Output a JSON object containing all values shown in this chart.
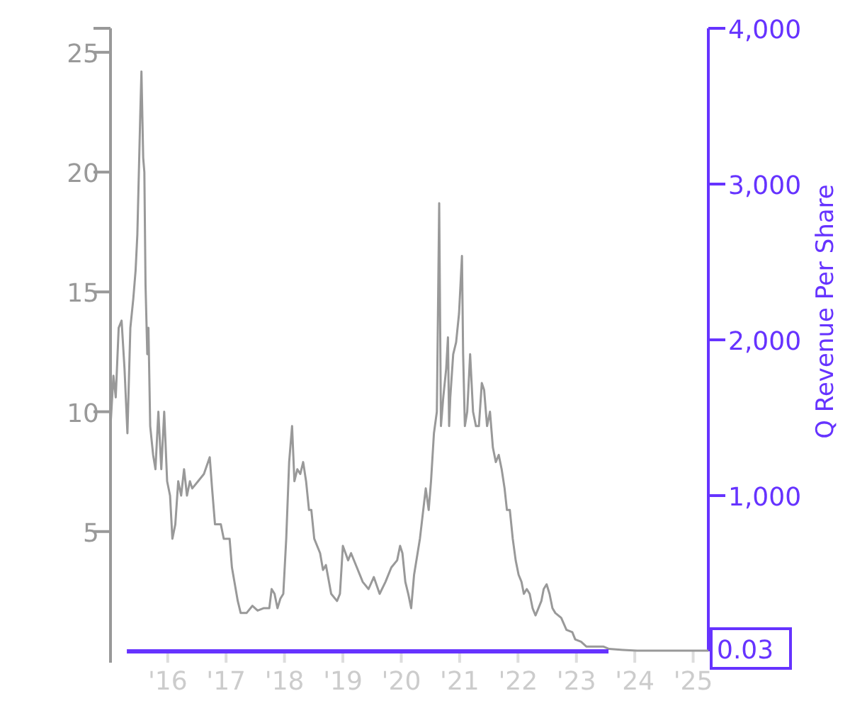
{
  "chart_data": {
    "type": "line",
    "y2label": "Q Revenue Per Share",
    "xlim": [
      2015.02,
      2025.26
    ],
    "ylim": [
      0,
      26
    ],
    "y2lim": [
      0,
      4000
    ],
    "xticks": [
      {
        "value": 2016,
        "label": "'16"
      },
      {
        "value": 2017,
        "label": "'17"
      },
      {
        "value": 2018,
        "label": "'18"
      },
      {
        "value": 2019,
        "label": "'19"
      },
      {
        "value": 2020,
        "label": "'20"
      },
      {
        "value": 2021,
        "label": "'21"
      },
      {
        "value": 2022,
        "label": "'22"
      },
      {
        "value": 2023,
        "label": "'23"
      },
      {
        "value": 2024,
        "label": "'24"
      },
      {
        "value": 2025,
        "label": "'25"
      }
    ],
    "yticks": [
      5,
      10,
      15,
      20,
      25
    ],
    "y2ticks": [
      {
        "value": 1000,
        "label": "1,000"
      },
      {
        "value": 2000,
        "label": "2,000"
      },
      {
        "value": 3000,
        "label": "3,000"
      },
      {
        "value": 4000,
        "label": "4,000"
      }
    ],
    "grid": false,
    "annotations": [
      "0.03"
    ],
    "series": [
      {
        "color": "#999999",
        "x": [
          2015.02,
          2015.07,
          2015.11,
          2015.16,
          2015.21,
          2015.26,
          2015.31,
          2015.36,
          2015.41,
          2015.45,
          2015.48,
          2015.5,
          2015.53,
          2015.55,
          2015.58,
          2015.6,
          2015.62,
          2015.65,
          2015.67,
          2015.7,
          2015.75,
          2015.79,
          2015.84,
          2015.89,
          2015.94,
          2015.99,
          2016.04,
          2016.08,
          2016.13,
          2016.18,
          2016.23,
          2016.28,
          2016.33,
          2016.38,
          2016.42,
          2016.52,
          2016.62,
          2016.72,
          2016.76,
          2016.81,
          2016.91,
          2016.96,
          2017.06,
          2017.1,
          2017.2,
          2017.25,
          2017.35,
          2017.45,
          2017.54,
          2017.64,
          2017.74,
          2017.78,
          2017.83,
          2017.88,
          2017.93,
          2017.98,
          2018.03,
          2018.08,
          2018.13,
          2018.17,
          2018.22,
          2018.27,
          2018.32,
          2018.37,
          2018.42,
          2018.46,
          2018.51,
          2018.61,
          2018.66,
          2018.71,
          2018.8,
          2018.9,
          2018.95,
          2019.0,
          2019.09,
          2019.14,
          2019.24,
          2019.34,
          2019.44,
          2019.53,
          2019.63,
          2019.73,
          2019.83,
          2019.93,
          2019.98,
          2020.02,
          2020.07,
          2020.12,
          2020.17,
          2020.22,
          2020.32,
          2020.42,
          2020.47,
          2020.51,
          2020.56,
          2020.61,
          2020.65,
          2020.68,
          2020.72,
          2020.77,
          2020.8,
          2020.82,
          2020.84,
          2020.89,
          2020.94,
          2020.99,
          2021.04,
          2021.06,
          2021.09,
          2021.13,
          2021.18,
          2021.23,
          2021.28,
          2021.33,
          2021.38,
          2021.42,
          2021.47,
          2021.52,
          2021.57,
          2021.62,
          2021.67,
          2021.72,
          2021.77,
          2021.81,
          2021.86,
          2021.91,
          2021.96,
          2022.01,
          2022.06,
          2022.1,
          2022.15,
          2022.2,
          2022.25,
          2022.3,
          2022.35,
          2022.4,
          2022.44,
          2022.49,
          2022.54,
          2022.59,
          2022.64,
          2022.74,
          2022.83,
          2022.93,
          2022.98,
          2023.08,
          2023.17,
          2023.32,
          2023.46,
          2023.56,
          2023.8,
          2024.04,
          2024.28,
          2025.26
        ],
        "values": [
          9.4,
          11.5,
          10.6,
          13.5,
          13.8,
          11.8,
          9.1,
          13.5,
          14.7,
          15.9,
          17.4,
          19.4,
          22.4,
          24.2,
          20.6,
          20.0,
          15.3,
          12.4,
          13.5,
          9.4,
          8.2,
          7.6,
          10.0,
          7.6,
          10.0,
          7.1,
          6.5,
          4.7,
          5.3,
          7.1,
          6.5,
          7.6,
          6.5,
          7.1,
          6.8,
          7.1,
          7.4,
          8.1,
          6.8,
          5.3,
          5.3,
          4.7,
          4.7,
          3.5,
          2.1,
          1.6,
          1.6,
          1.9,
          1.7,
          1.8,
          1.8,
          2.6,
          2.4,
          1.8,
          2.2,
          2.4,
          4.7,
          7.9,
          9.4,
          7.1,
          7.6,
          7.4,
          7.9,
          7.1,
          5.9,
          5.9,
          4.7,
          4.1,
          3.4,
          3.6,
          2.4,
          2.1,
          2.4,
          4.4,
          3.8,
          4.1,
          3.5,
          2.9,
          2.6,
          3.1,
          2.4,
          2.9,
          3.5,
          3.8,
          4.4,
          4.1,
          2.9,
          2.4,
          1.8,
          3.2,
          4.7,
          6.8,
          5.9,
          7.1,
          9.1,
          10.0,
          18.7,
          9.4,
          10.6,
          11.8,
          13.1,
          9.4,
          10.6,
          12.4,
          12.9,
          14.1,
          16.5,
          12.4,
          9.4,
          10.0,
          12.4,
          10.0,
          9.4,
          9.4,
          11.2,
          10.9,
          9.4,
          10.0,
          8.5,
          7.9,
          8.2,
          7.6,
          6.8,
          5.9,
          5.9,
          4.7,
          3.8,
          3.2,
          2.9,
          2.4,
          2.6,
          2.4,
          1.8,
          1.5,
          1.8,
          2.1,
          2.6,
          2.8,
          2.4,
          1.8,
          1.6,
          1.4,
          0.9,
          0.8,
          0.5,
          0.4,
          0.2,
          0.2,
          0.2,
          0.1,
          0.06,
          0.03,
          0.03,
          0.03
        ]
      },
      {
        "color": "#6633ff",
        "axis": "y2",
        "x": [
          2015.3,
          2023.55
        ],
        "values": [
          0,
          0
        ]
      }
    ]
  }
}
